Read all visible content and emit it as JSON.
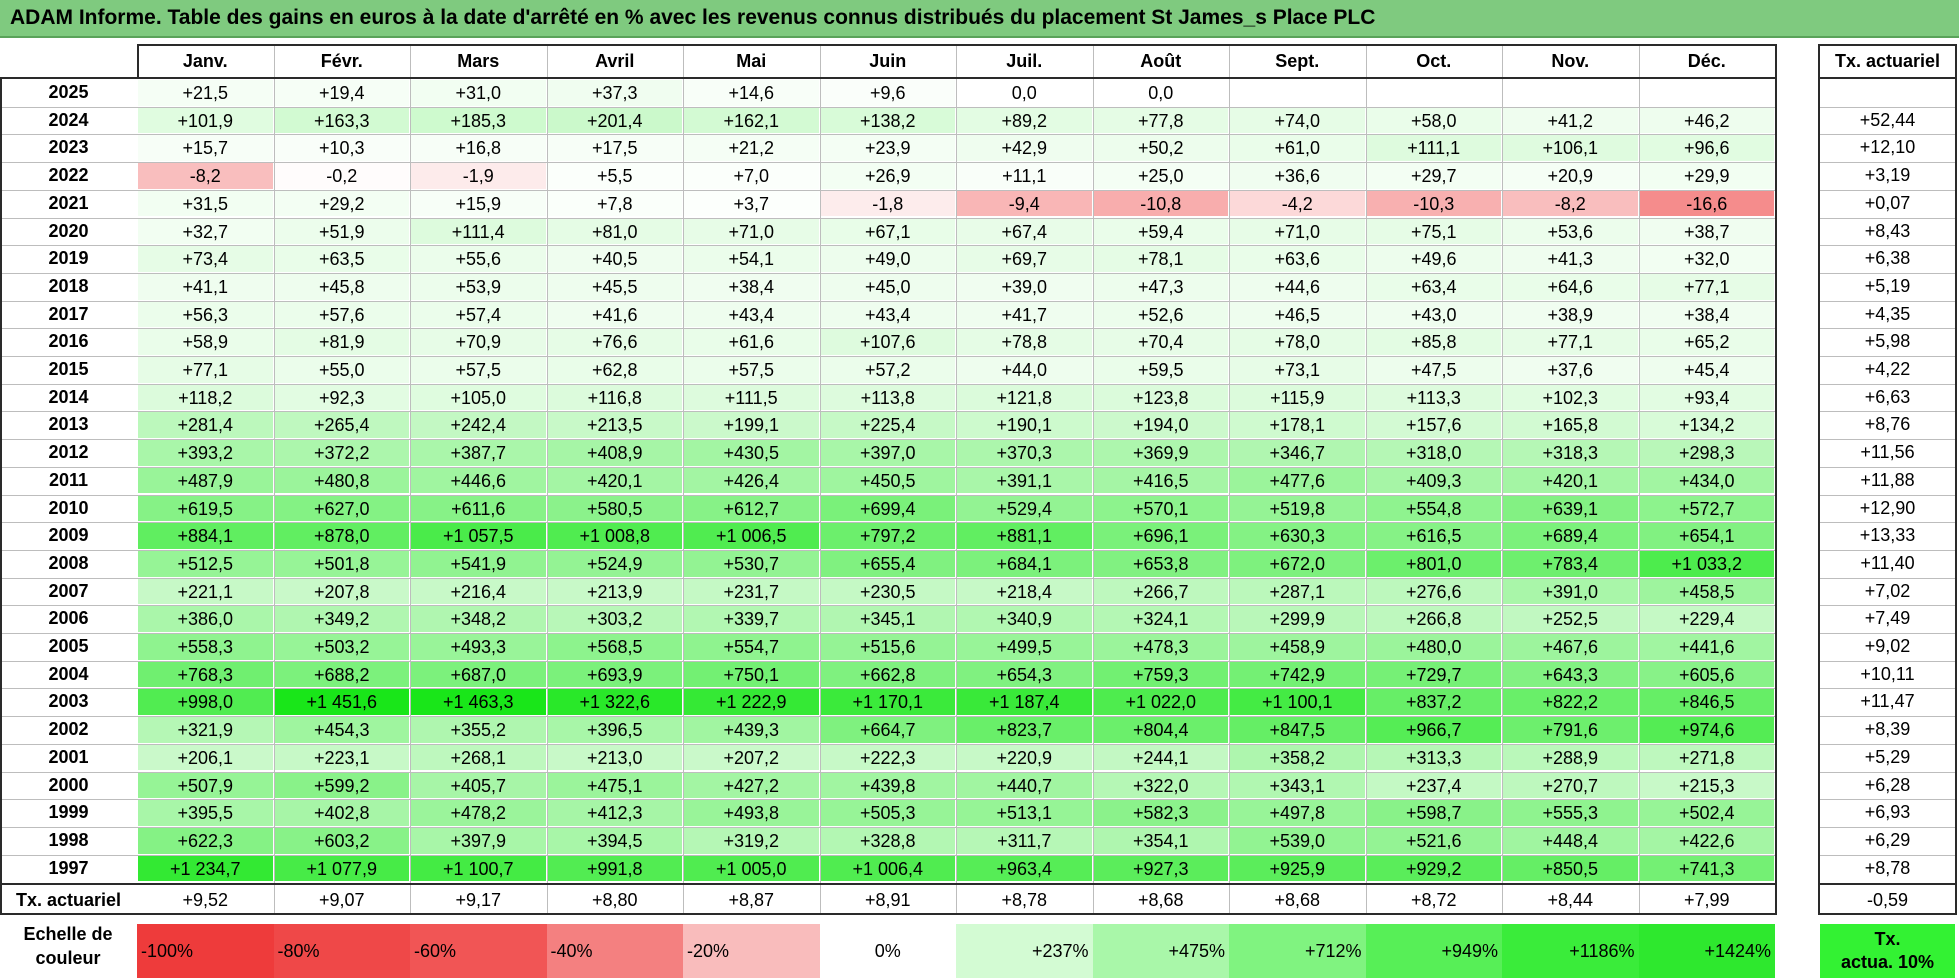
{
  "title": "ADAM Informe. Table des gains en euros à la date d'arrêté en % avec les revenus connus distribués du placement St James_s Place PLC",
  "months": [
    "Janv.",
    "Févr.",
    "Mars",
    "Avril",
    "Mai",
    "Juin",
    "Juil.",
    "Août",
    "Sept.",
    "Oct.",
    "Nov.",
    "Déc."
  ],
  "tx_header": "Tx. actuariel",
  "footer_label": "Tx. actuariel",
  "scale_label_line1": "Echelle de",
  "scale_label_line2": "couleur",
  "scale_tx_line1": "Tx.",
  "scale_tx_line2": "actua. 10%",
  "chart_data": {
    "type": "table",
    "rows": [
      {
        "year": "2025",
        "values": [
          "+21,5",
          "+19,4",
          "+31,0",
          "+37,3",
          "+14,6",
          "+9,6",
          "0,0",
          "0,0",
          "",
          "",
          "",
          ""
        ],
        "tx": ""
      },
      {
        "year": "2024",
        "values": [
          "+101,9",
          "+163,3",
          "+185,3",
          "+201,4",
          "+162,1",
          "+138,2",
          "+89,2",
          "+77,8",
          "+74,0",
          "+58,0",
          "+41,2",
          "+46,2"
        ],
        "tx": "+52,44"
      },
      {
        "year": "2023",
        "values": [
          "+15,7",
          "+10,3",
          "+16,8",
          "+17,5",
          "+21,2",
          "+23,9",
          "+42,9",
          "+50,2",
          "+61,0",
          "+111,1",
          "+106,1",
          "+96,6"
        ],
        "tx": "+12,10"
      },
      {
        "year": "2022",
        "values": [
          "-8,2",
          "-0,2",
          "-1,9",
          "+5,5",
          "+7,0",
          "+26,9",
          "+11,1",
          "+25,0",
          "+36,6",
          "+29,7",
          "+20,9",
          "+29,9"
        ],
        "tx": "+3,19"
      },
      {
        "year": "2021",
        "values": [
          "+31,5",
          "+29,2",
          "+15,9",
          "+7,8",
          "+3,7",
          "-1,8",
          "-9,4",
          "-10,8",
          "-4,2",
          "-10,3",
          "-8,2",
          "-16,6"
        ],
        "tx": "+0,07"
      },
      {
        "year": "2020",
        "values": [
          "+32,7",
          "+51,9",
          "+111,4",
          "+81,0",
          "+71,0",
          "+67,1",
          "+67,4",
          "+59,4",
          "+71,0",
          "+75,1",
          "+53,6",
          "+38,7"
        ],
        "tx": "+8,43"
      },
      {
        "year": "2019",
        "values": [
          "+73,4",
          "+63,5",
          "+55,6",
          "+40,5",
          "+54,1",
          "+49,0",
          "+69,7",
          "+78,1",
          "+63,6",
          "+49,6",
          "+41,3",
          "+32,0"
        ],
        "tx": "+6,38"
      },
      {
        "year": "2018",
        "values": [
          "+41,1",
          "+45,8",
          "+53,9",
          "+45,5",
          "+38,4",
          "+45,0",
          "+39,0",
          "+47,3",
          "+44,6",
          "+63,4",
          "+64,6",
          "+77,1"
        ],
        "tx": "+5,19"
      },
      {
        "year": "2017",
        "values": [
          "+56,3",
          "+57,6",
          "+57,4",
          "+41,6",
          "+43,4",
          "+43,4",
          "+41,7",
          "+52,6",
          "+46,5",
          "+43,0",
          "+38,9",
          "+38,4"
        ],
        "tx": "+4,35"
      },
      {
        "year": "2016",
        "values": [
          "+58,9",
          "+81,9",
          "+70,9",
          "+76,6",
          "+61,6",
          "+107,6",
          "+78,8",
          "+70,4",
          "+78,0",
          "+85,8",
          "+77,1",
          "+65,2"
        ],
        "tx": "+5,98"
      },
      {
        "year": "2015",
        "values": [
          "+77,1",
          "+55,0",
          "+57,5",
          "+62,8",
          "+57,5",
          "+57,2",
          "+44,0",
          "+59,5",
          "+73,1",
          "+47,5",
          "+37,6",
          "+45,4"
        ],
        "tx": "+4,22"
      },
      {
        "year": "2014",
        "values": [
          "+118,2",
          "+92,3",
          "+105,0",
          "+116,8",
          "+111,5",
          "+113,8",
          "+121,8",
          "+123,8",
          "+115,9",
          "+113,3",
          "+102,3",
          "+93,4"
        ],
        "tx": "+6,63"
      },
      {
        "year": "2013",
        "values": [
          "+281,4",
          "+265,4",
          "+242,4",
          "+213,5",
          "+199,1",
          "+225,4",
          "+190,1",
          "+194,0",
          "+178,1",
          "+157,6",
          "+165,8",
          "+134,2"
        ],
        "tx": "+8,76"
      },
      {
        "year": "2012",
        "values": [
          "+393,2",
          "+372,2",
          "+387,7",
          "+408,9",
          "+430,5",
          "+397,0",
          "+370,3",
          "+369,9",
          "+346,7",
          "+318,0",
          "+318,3",
          "+298,3"
        ],
        "tx": "+11,56"
      },
      {
        "year": "2011",
        "values": [
          "+487,9",
          "+480,8",
          "+446,6",
          "+420,1",
          "+426,4",
          "+450,5",
          "+391,1",
          "+416,5",
          "+477,6",
          "+409,3",
          "+420,1",
          "+434,0"
        ],
        "tx": "+11,88"
      },
      {
        "year": "2010",
        "values": [
          "+619,5",
          "+627,0",
          "+611,6",
          "+580,5",
          "+612,7",
          "+699,4",
          "+529,4",
          "+570,1",
          "+519,8",
          "+554,8",
          "+639,1",
          "+572,7"
        ],
        "tx": "+12,90"
      },
      {
        "year": "2009",
        "values": [
          "+884,1",
          "+878,0",
          "+1 057,5",
          "+1 008,8",
          "+1 006,5",
          "+797,2",
          "+881,1",
          "+696,1",
          "+630,3",
          "+616,5",
          "+689,4",
          "+654,1"
        ],
        "tx": "+13,33"
      },
      {
        "year": "2008",
        "values": [
          "+512,5",
          "+501,8",
          "+541,9",
          "+524,9",
          "+530,7",
          "+655,4",
          "+684,1",
          "+653,8",
          "+672,0",
          "+801,0",
          "+783,4",
          "+1 033,2"
        ],
        "tx": "+11,40"
      },
      {
        "year": "2007",
        "values": [
          "+221,1",
          "+207,8",
          "+216,4",
          "+213,9",
          "+231,7",
          "+230,5",
          "+218,4",
          "+266,7",
          "+287,1",
          "+276,6",
          "+391,0",
          "+458,5"
        ],
        "tx": "+7,02"
      },
      {
        "year": "2006",
        "values": [
          "+386,0",
          "+349,2",
          "+348,2",
          "+303,2",
          "+339,7",
          "+345,1",
          "+340,9",
          "+324,1",
          "+299,9",
          "+266,8",
          "+252,5",
          "+229,4"
        ],
        "tx": "+7,49"
      },
      {
        "year": "2005",
        "values": [
          "+558,3",
          "+503,2",
          "+493,3",
          "+568,5",
          "+554,7",
          "+515,6",
          "+499,5",
          "+478,3",
          "+458,9",
          "+480,0",
          "+467,6",
          "+441,6"
        ],
        "tx": "+9,02"
      },
      {
        "year": "2004",
        "values": [
          "+768,3",
          "+688,2",
          "+687,0",
          "+693,9",
          "+750,1",
          "+662,8",
          "+654,3",
          "+759,3",
          "+742,9",
          "+729,7",
          "+643,3",
          "+605,6"
        ],
        "tx": "+10,11"
      },
      {
        "year": "2003",
        "values": [
          "+998,0",
          "+1 451,6",
          "+1 463,3",
          "+1 322,6",
          "+1 222,9",
          "+1 170,1",
          "+1 187,4",
          "+1 022,0",
          "+1 100,1",
          "+837,2",
          "+822,2",
          "+846,5"
        ],
        "tx": "+11,47"
      },
      {
        "year": "2002",
        "values": [
          "+321,9",
          "+454,3",
          "+355,2",
          "+396,5",
          "+439,3",
          "+664,7",
          "+823,7",
          "+804,4",
          "+847,5",
          "+966,7",
          "+791,6",
          "+974,6"
        ],
        "tx": "+8,39"
      },
      {
        "year": "2001",
        "values": [
          "+206,1",
          "+223,1",
          "+268,1",
          "+213,0",
          "+207,2",
          "+222,3",
          "+220,9",
          "+244,1",
          "+358,2",
          "+313,3",
          "+288,9",
          "+271,8"
        ],
        "tx": "+5,29"
      },
      {
        "year": "2000",
        "values": [
          "+507,9",
          "+599,2",
          "+405,7",
          "+475,1",
          "+427,2",
          "+439,8",
          "+440,7",
          "+322,0",
          "+343,1",
          "+237,4",
          "+270,7",
          "+215,3"
        ],
        "tx": "+6,28"
      },
      {
        "year": "1999",
        "values": [
          "+395,5",
          "+402,8",
          "+478,2",
          "+412,3",
          "+493,8",
          "+505,3",
          "+513,1",
          "+582,3",
          "+497,8",
          "+598,7",
          "+555,3",
          "+502,4"
        ],
        "tx": "+6,93"
      },
      {
        "year": "1998",
        "values": [
          "+622,3",
          "+603,2",
          "+397,9",
          "+394,5",
          "+319,2",
          "+328,8",
          "+311,7",
          "+354,1",
          "+539,0",
          "+521,6",
          "+448,4",
          "+422,6"
        ],
        "tx": "+6,29"
      },
      {
        "year": "1997",
        "values": [
          "+1 234,7",
          "+1 077,9",
          "+1 100,7",
          "+991,8",
          "+1 005,0",
          "+1 006,4",
          "+963,4",
          "+927,3",
          "+925,9",
          "+929,2",
          "+850,5",
          "+741,3"
        ],
        "tx": "+8,78"
      }
    ],
    "footer": {
      "values": [
        "+9,52",
        "+9,07",
        "+9,17",
        "+8,80",
        "+8,87",
        "+8,91",
        "+8,78",
        "+8,68",
        "+8,68",
        "+8,72",
        "+8,44",
        "+7,99"
      ],
      "tx": "-0,59"
    },
    "color_scale": [
      {
        "label": "-100%",
        "color": "#ee3b3b"
      },
      {
        "label": "-80%",
        "color": "#ef4848"
      },
      {
        "label": "-60%",
        "color": "#f15555"
      },
      {
        "label": "-40%",
        "color": "#f48080"
      },
      {
        "label": "-20%",
        "color": "#f9bcbc"
      },
      {
        "label": "0%",
        "color": "#ffffff"
      },
      {
        "label": "+237%",
        "color": "#d3fbd3"
      },
      {
        "label": "+475%",
        "color": "#a9f7a9"
      },
      {
        "label": "+712%",
        "color": "#80f380"
      },
      {
        "label": "+949%",
        "color": "#57ef57"
      },
      {
        "label": "+1186%",
        "color": "#3aec3a"
      },
      {
        "label": "+1424%",
        "color": "#2ee82e"
      }
    ],
    "scale_tx_color": "#33f233"
  }
}
